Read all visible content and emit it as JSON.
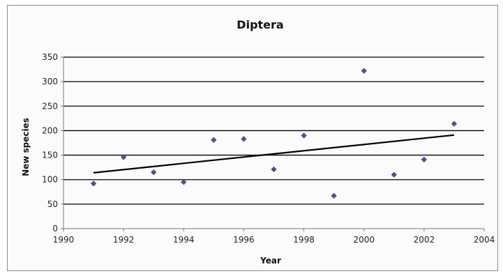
{
  "chart_data": {
    "type": "scatter",
    "title": "Diptera",
    "xlabel": "Year",
    "ylabel": "New species",
    "xlim": [
      1990,
      2004
    ],
    "ylim": [
      0,
      350
    ],
    "x_ticks": [
      1990,
      1992,
      1994,
      1996,
      1998,
      2000,
      2002,
      2004
    ],
    "y_ticks": [
      0,
      50,
      100,
      150,
      200,
      250,
      300,
      350
    ],
    "grid": "horizontal",
    "legend": "none",
    "series": [
      {
        "x": [
          1991,
          1992,
          1993,
          1994,
          1995,
          1996,
          1997,
          1998,
          1999,
          2000,
          2001,
          2002,
          2003
        ],
        "y": [
          92,
          146,
          115,
          95,
          181,
          183,
          121,
          190,
          67,
          322,
          110,
          141,
          214
        ],
        "marker": "diamond",
        "color": "#5a4b8a"
      }
    ],
    "trendline": {
      "type": "linear",
      "x": [
        1991,
        2003
      ],
      "y": [
        114,
        191
      ],
      "color": "#000000"
    }
  }
}
